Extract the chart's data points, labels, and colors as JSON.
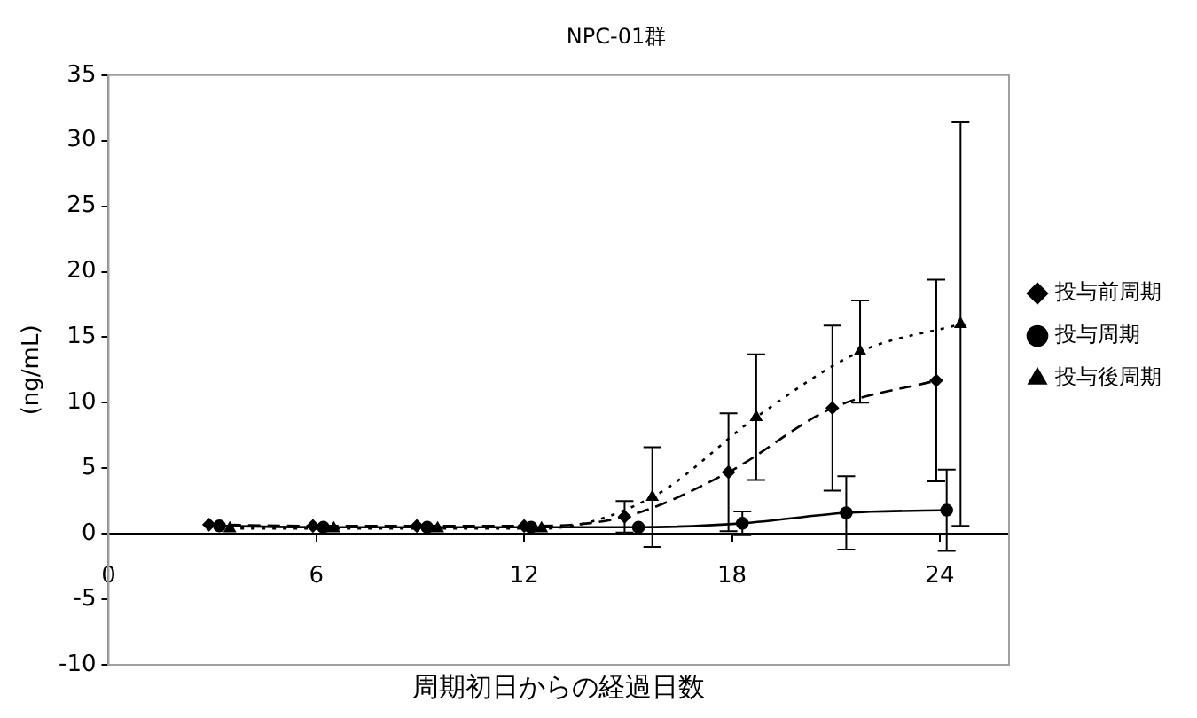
{
  "chart_data": {
    "type": "line",
    "title": "NPC-01群",
    "xlabel": "周期初日からの経過日数",
    "ylabel": "(ng/mL)",
    "xlim": [
      0,
      26
    ],
    "xticks": [
      0,
      6,
      12,
      18,
      24
    ],
    "ylim": [
      -10,
      35
    ],
    "yticks": [
      -10,
      -5,
      0,
      5,
      10,
      15,
      20,
      25,
      30,
      35
    ],
    "grid": false,
    "legend": "right",
    "series": [
      {
        "name": "投与前周期",
        "color": "#000000",
        "marker": "diamond",
        "line_style": "dashed",
        "x": [
          2.9,
          5.9,
          8.9,
          12.0,
          14.9,
          17.9,
          20.9,
          23.9
        ],
        "values": [
          0.7,
          0.6,
          0.6,
          0.6,
          1.3,
          4.7,
          9.6,
          11.7
        ],
        "errors": [
          null,
          null,
          null,
          null,
          1.2,
          4.5,
          6.3,
          7.7
        ]
      },
      {
        "name": "投与周期",
        "color": "#000000",
        "marker": "circle",
        "line_style": "solid",
        "x": [
          3.2,
          6.2,
          9.2,
          12.2,
          15.3,
          18.3,
          21.3,
          24.2
        ],
        "values": [
          0.6,
          0.5,
          0.5,
          0.5,
          0.5,
          0.8,
          1.6,
          1.8
        ],
        "errors": [
          null,
          null,
          null,
          null,
          null,
          0.9,
          2.8,
          3.1
        ]
      },
      {
        "name": "投与後周期",
        "color": "#000000",
        "marker": "triangle",
        "line_style": "dotted",
        "x": [
          3.5,
          6.5,
          9.5,
          12.5,
          15.7,
          18.7,
          21.7,
          24.6
        ],
        "values": [
          0.4,
          0.4,
          0.4,
          0.4,
          2.8,
          8.9,
          13.9,
          16.0
        ],
        "errors": [
          null,
          null,
          null,
          null,
          3.8,
          4.8,
          3.9,
          15.4
        ]
      }
    ]
  }
}
